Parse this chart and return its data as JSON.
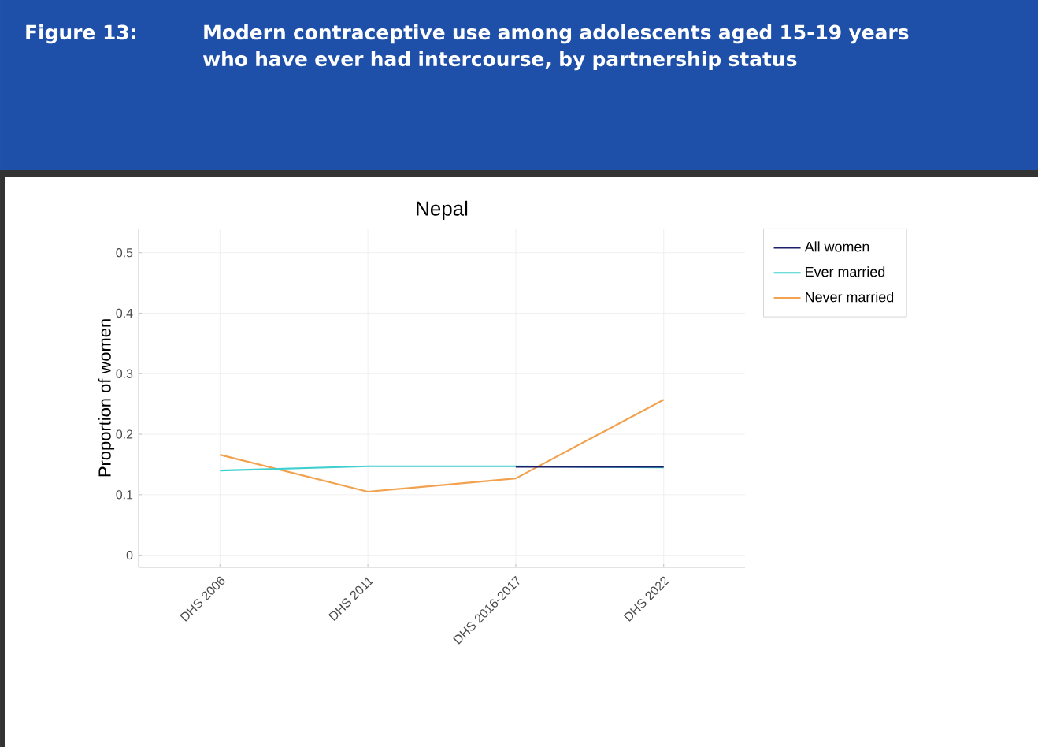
{
  "chart_data": {
    "type": "line",
    "title": "Nepal",
    "ylabel": "Proportion of women",
    "annotations": [
      "Figure 13:",
      "Modern contraceptive use among adolescents aged 15-19 years who have ever had intercourse, by partnership status"
    ],
    "categories": [
      "DHS 2006",
      "DHS 2011",
      "DHS 2016-2017",
      "DHS 2022"
    ],
    "series": [
      {
        "name": "All women",
        "color": "#1b1f6b",
        "values": [
          null,
          null,
          0.146,
          0.146
        ]
      },
      {
        "name": "Ever married",
        "color": "#3fcfcf",
        "values": [
          0.14,
          0.147,
          0.147,
          0.145
        ]
      },
      {
        "name": "Never married",
        "color": "#f2a24e",
        "values": [
          0.166,
          0.105,
          0.127,
          0.257
        ]
      }
    ],
    "ylim": [
      -0.02,
      0.54
    ],
    "yticks": [
      0,
      0.1,
      0.2,
      0.3,
      0.4,
      0.5
    ],
    "grid": true,
    "legend": "right",
    "line_style": "solid"
  }
}
